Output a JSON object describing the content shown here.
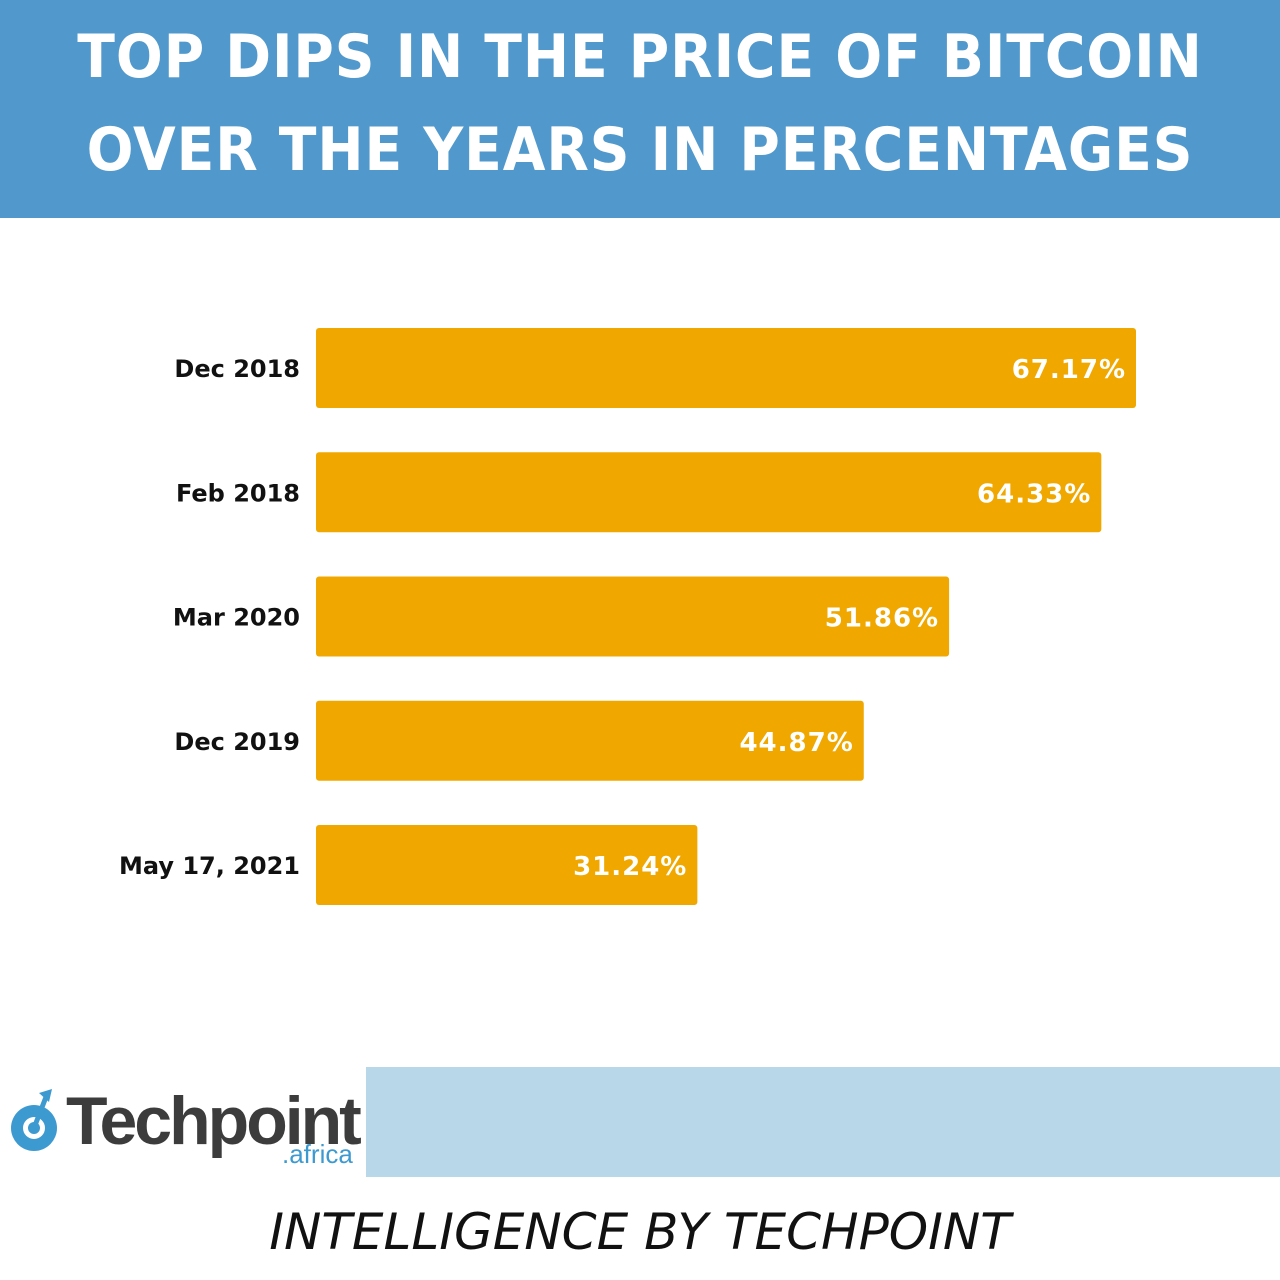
{
  "header": {
    "title_line1": "TOP DIPS IN THE PRICE OF BITCOIN",
    "title_line2": "OVER THE YEARS IN PERCENTAGES"
  },
  "chart_data": {
    "type": "bar",
    "orientation": "horizontal",
    "categories": [
      "Dec 2018",
      "Feb 2018",
      "Mar 2020",
      "Dec 2019",
      "May 17, 2021"
    ],
    "values": [
      67.17,
      64.33,
      51.86,
      44.87,
      31.24
    ],
    "value_labels": [
      "67.17%",
      "64.33%",
      "51.86%",
      "44.87%",
      "31.24%"
    ],
    "xlim": [
      0,
      67.17
    ],
    "grid": false,
    "bar_color": "#f0a800",
    "value_label_color": "#ffffff"
  },
  "footer": {
    "logo_name": "Techpoint",
    "logo_sub": ".africa",
    "credit": "INTELLIGENCE BY TECHPOINT"
  },
  "colors": {
    "header_bg": "#5199cc",
    "footer_band": "#b8d8ea",
    "logo_accent": "#3d9ad1"
  }
}
